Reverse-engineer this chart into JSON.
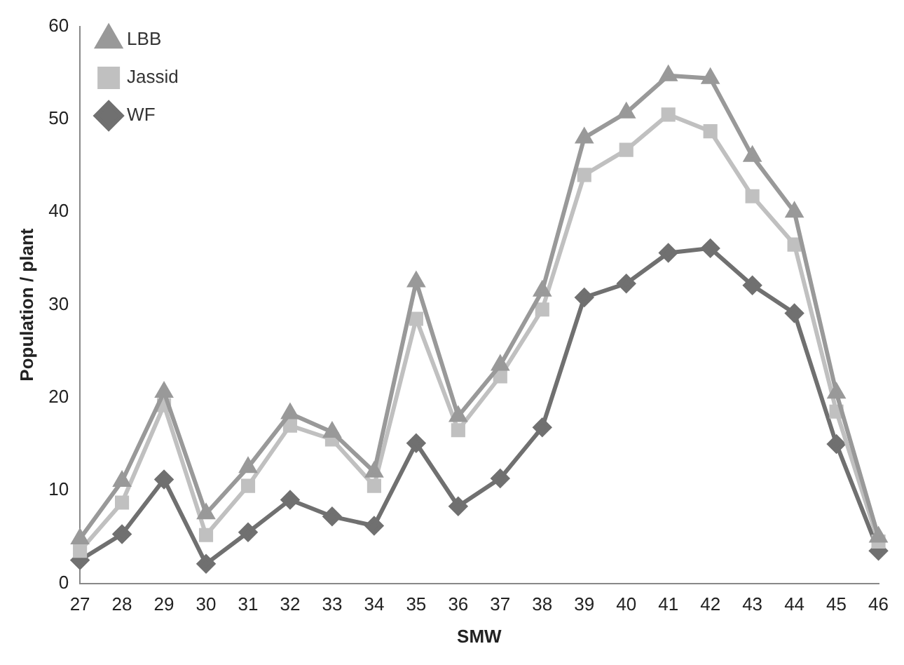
{
  "chart_data": {
    "type": "line",
    "xlabel": "SMW",
    "ylabel": "Population / plant",
    "categories": [
      "27",
      "28",
      "29",
      "30",
      "31",
      "32",
      "33",
      "34",
      "35",
      "36",
      "37",
      "38",
      "39",
      "40",
      "41",
      "42",
      "43",
      "44",
      "45",
      "46"
    ],
    "series": [
      {
        "name": "LBB",
        "color": "#999999",
        "marker": "triangle",
        "values": [
          4.8,
          11,
          20.6,
          7.5,
          12.5,
          18.3,
          16.3,
          12,
          32.5,
          18,
          23.5,
          31.5,
          48,
          50.7,
          54.7,
          54.4,
          46,
          40,
          20.5,
          5
        ]
      },
      {
        "name": "Jassid",
        "color": "#c0c0c0",
        "marker": "square",
        "values": [
          3.5,
          8.7,
          19.2,
          5.2,
          10.5,
          17,
          15.5,
          10.5,
          28.5,
          16.5,
          22.3,
          29.5,
          44,
          46.7,
          50.5,
          48.7,
          41.7,
          36.5,
          18.5,
          4.5
        ]
      },
      {
        "name": "WF",
        "color": "#707070",
        "marker": "diamond",
        "values": [
          2.5,
          5.3,
          11.2,
          2.1,
          5.5,
          9,
          7.2,
          6.2,
          15.1,
          8.3,
          11.3,
          16.8,
          30.8,
          32.3,
          35.6,
          36.1,
          32.1,
          29.1,
          15,
          3.5
        ]
      }
    ],
    "ylim": [
      0,
      60
    ],
    "yticks": [
      0,
      10,
      20,
      30,
      40,
      50,
      60
    ],
    "grid": false,
    "legend": "top left",
    "line_style": "solid"
  }
}
